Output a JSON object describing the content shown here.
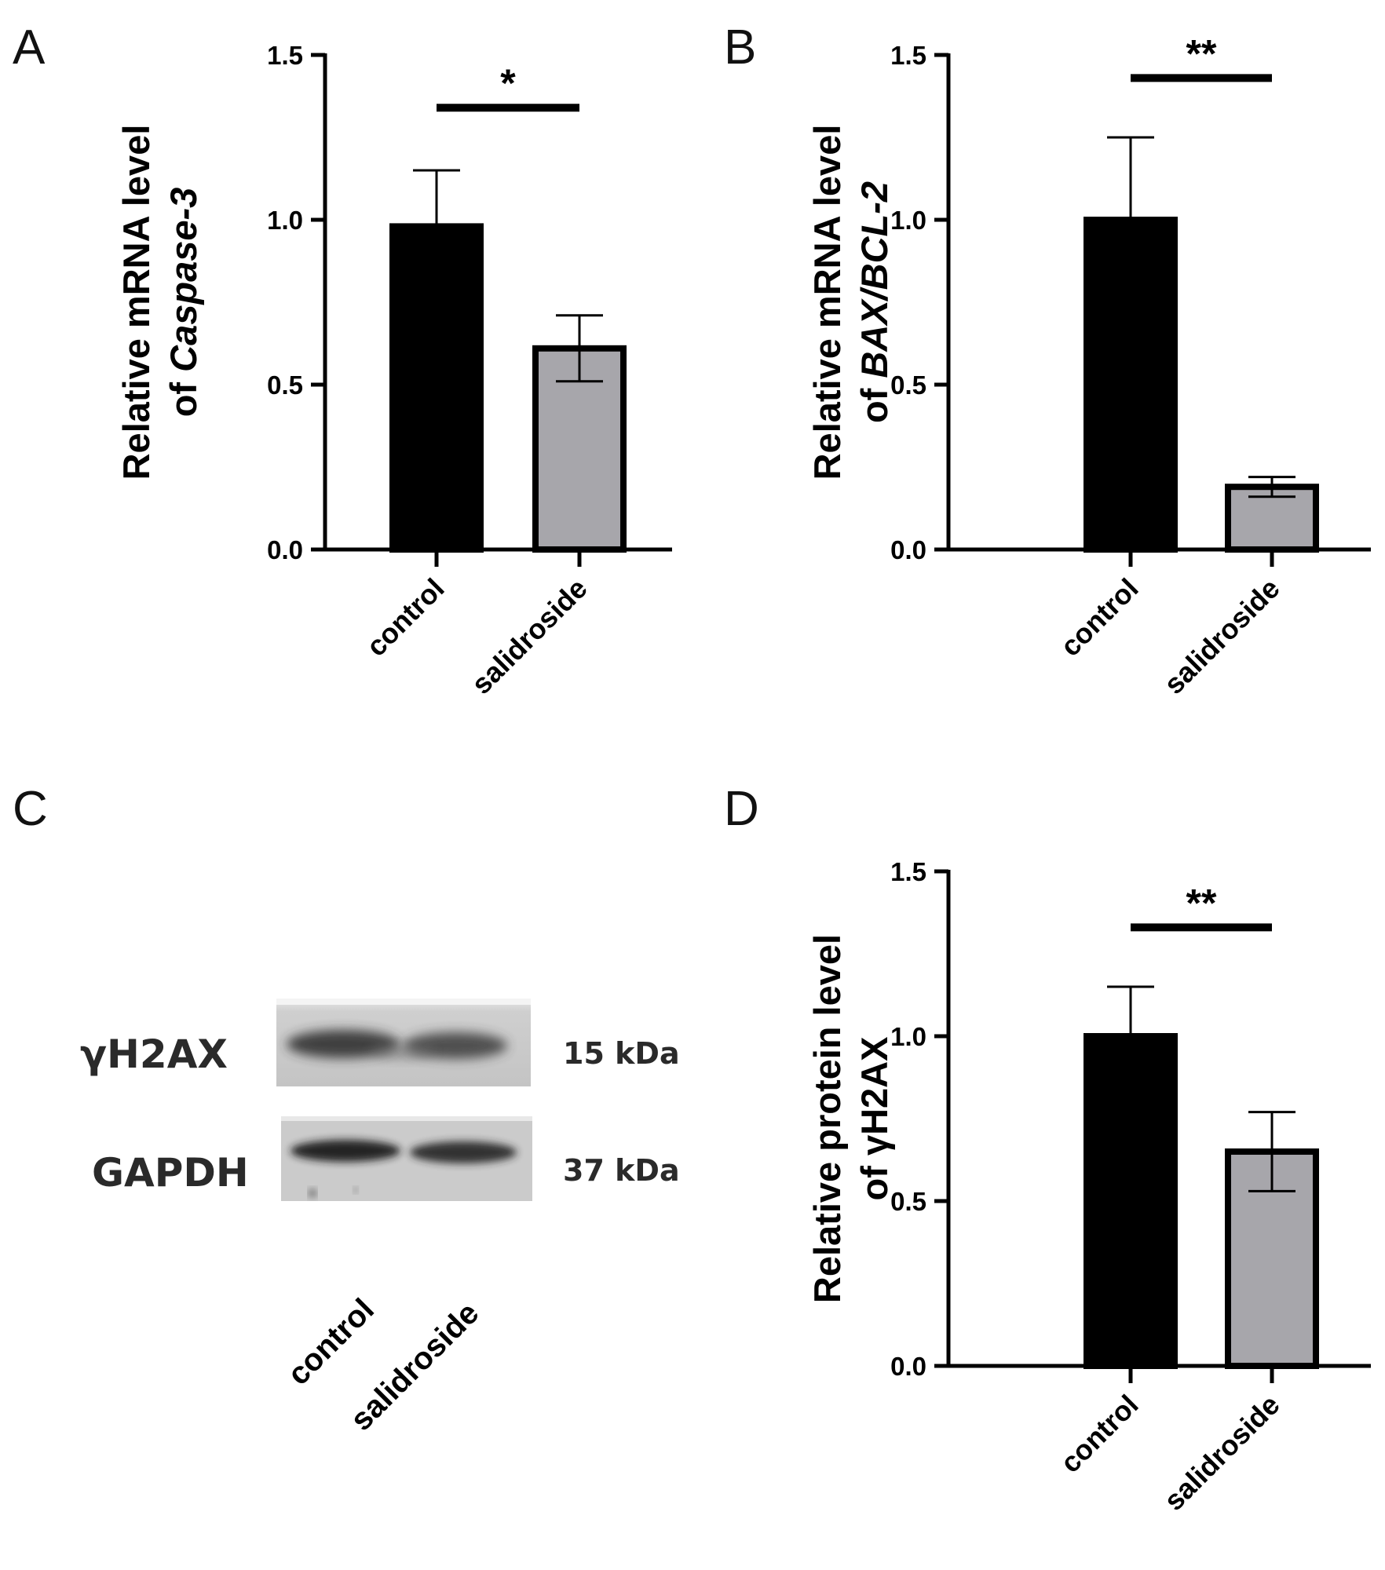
{
  "colors": {
    "control_bar": "#000000",
    "salidroside_bar": "#a7a6ab",
    "axis": "#000000"
  },
  "panels": {
    "a": {
      "letter": "A"
    },
    "b": {
      "letter": "B"
    },
    "c": {
      "letter": "C"
    },
    "d": {
      "letter": "D"
    }
  },
  "chart_data": [
    {
      "panel": "A",
      "type": "bar",
      "categories": [
        "control",
        "salidroside"
      ],
      "values": [
        0.98,
        0.61
      ],
      "error": [
        0.17,
        0.1
      ],
      "ylabel_line1": "Relative mRNA level",
      "ylabel_line2_prefix": "of ",
      "ylabel_line2_italic": "Caspase-3",
      "ylim": [
        0,
        1.5
      ],
      "yticks": [
        "0.0",
        "0.5",
        "1.0",
        "1.5"
      ],
      "significance": "*",
      "significance_y": 1.34,
      "bar_colors": [
        "#000000",
        "#a7a6ab"
      ]
    },
    {
      "panel": "B",
      "type": "bar",
      "categories": [
        "control",
        "salidroside"
      ],
      "values": [
        1.0,
        0.19
      ],
      "error": [
        0.25,
        0.03
      ],
      "ylabel_line1": "Relative mRNA level",
      "ylabel_line2_prefix": "of ",
      "ylabel_line2_italic": "BAX/BCL-2",
      "ylim": [
        0,
        1.5
      ],
      "yticks": [
        "0.0",
        "0.5",
        "1.0",
        "1.5"
      ],
      "significance": "**",
      "significance_y": 1.43,
      "bar_colors": [
        "#000000",
        "#a7a6ab"
      ]
    },
    {
      "panel": "D",
      "type": "bar",
      "categories": [
        "control",
        "salidroside"
      ],
      "values": [
        1.0,
        0.65
      ],
      "error": [
        0.15,
        0.12
      ],
      "ylabel_line1": "Relative protein level",
      "ylabel_line2_prefix": "of γH2AX",
      "ylabel_line2_italic": "",
      "ylim": [
        0,
        1.5
      ],
      "yticks": [
        "0.0",
        "0.5",
        "1.0",
        "1.5"
      ],
      "significance": "**",
      "significance_y": 1.33,
      "bar_colors": [
        "#000000",
        "#a7a6ab"
      ]
    }
  ],
  "western_blot": {
    "rows": [
      {
        "protein": "γH2AX",
        "size_num": "15",
        "size_unit": "kDa"
      },
      {
        "protein": "GAPDH",
        "size_num": "37",
        "size_unit": "kDa"
      }
    ],
    "lanes": [
      "control",
      "salidroside"
    ]
  }
}
